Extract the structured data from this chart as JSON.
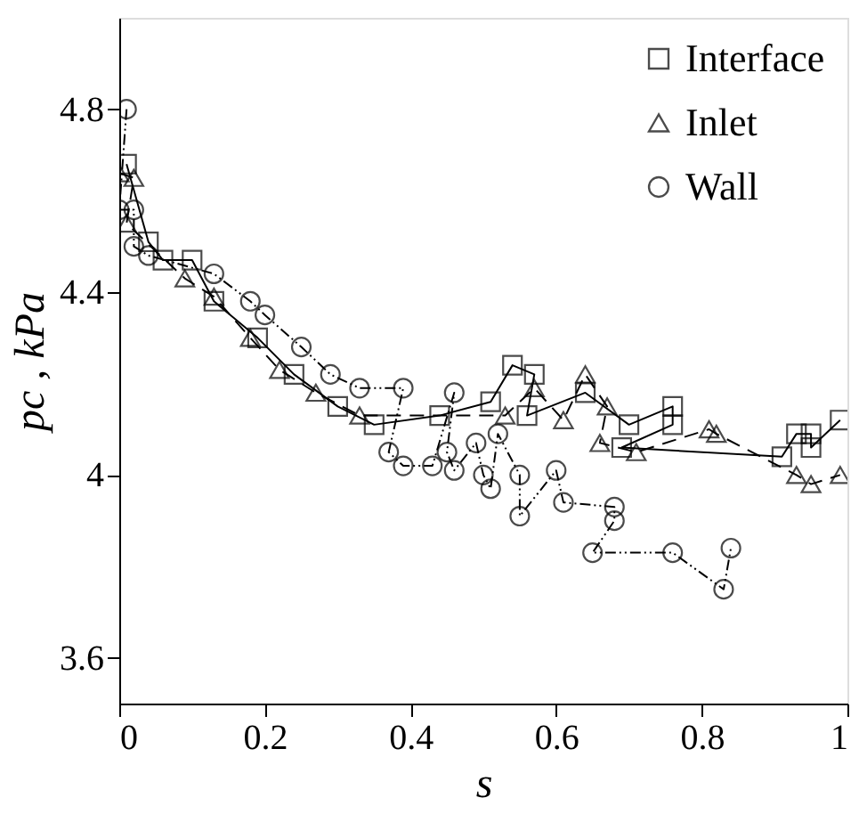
{
  "chart_data": {
    "type": "line",
    "xlabel": "s",
    "ylabel": "pc , kPa",
    "xlim": [
      0,
      1
    ],
    "xticks": [
      0,
      0.2,
      0.4,
      0.6,
      0.8,
      1
    ],
    "ylim": [
      3.5,
      5.0
    ],
    "yticks": [
      3.6,
      4,
      4.4,
      4.8
    ],
    "grid": false,
    "legend": "top right",
    "series": [
      {
        "name": "Interface",
        "color": "#000000",
        "marker": "square",
        "line_style": "solid",
        "x": [
          0.01,
          0.04,
          0.06,
          0.1,
          0.13,
          0.19,
          0.24,
          0.3,
          0.35,
          0.44,
          0.51,
          0.54,
          0.57,
          0.56,
          0.64,
          0.7,
          0.76,
          0.76,
          0.69,
          0.91,
          0.93,
          0.95,
          0.95,
          0.99
        ],
        "values": [
          4.68,
          4.51,
          4.47,
          4.47,
          4.38,
          4.3,
          4.22,
          4.15,
          4.11,
          4.13,
          4.16,
          4.24,
          4.22,
          4.13,
          4.18,
          4.11,
          4.15,
          4.11,
          4.06,
          4.04,
          4.09,
          4.09,
          4.06,
          4.12
        ]
      },
      {
        "name": "Inlet",
        "color": "#000000",
        "marker": "triangle",
        "line_style": "dashed",
        "x": [
          0.0,
          0.02,
          0.01,
          0.09,
          0.13,
          0.18,
          0.22,
          0.27,
          0.33,
          0.53,
          0.57,
          0.61,
          0.64,
          0.67,
          0.66,
          0.71,
          0.81,
          0.82,
          0.93,
          0.95,
          0.99
        ],
        "values": [
          4.66,
          4.65,
          4.55,
          4.43,
          4.39,
          4.3,
          4.23,
          4.18,
          4.13,
          4.13,
          4.19,
          4.12,
          4.22,
          4.15,
          4.07,
          4.05,
          4.1,
          4.09,
          4.0,
          3.98,
          4.0
        ]
      },
      {
        "name": "Wall",
        "color": "#000000",
        "marker": "circle",
        "line_style": "dotted",
        "x": [
          0.01,
          0.0,
          0.02,
          0.02,
          0.04,
          0.13,
          0.18,
          0.2,
          0.25,
          0.29,
          0.33,
          0.39,
          0.37,
          0.39,
          0.43,
          0.46,
          0.45,
          0.46,
          0.49,
          0.5,
          0.51,
          0.52,
          0.55,
          0.55,
          0.6,
          0.61,
          0.68,
          0.68,
          0.65,
          0.76,
          0.83,
          0.84
        ],
        "values": [
          4.8,
          4.58,
          4.58,
          4.5,
          4.48,
          4.44,
          4.38,
          4.35,
          4.28,
          4.22,
          4.19,
          4.19,
          4.05,
          4.02,
          4.02,
          4.18,
          4.05,
          4.01,
          4.07,
          4.0,
          3.97,
          4.09,
          4.0,
          3.91,
          4.01,
          3.94,
          3.93,
          3.9,
          3.83,
          3.83,
          3.75,
          3.84
        ]
      }
    ]
  }
}
